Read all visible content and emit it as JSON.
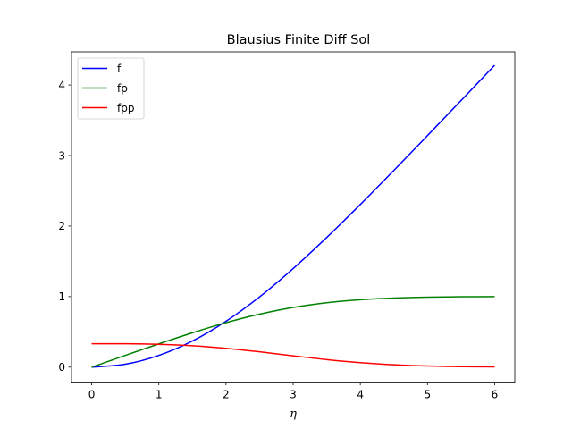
{
  "chart_data": {
    "type": "line",
    "title": "Blausius Finite Diff Sol",
    "xlabel": "η",
    "ylabel": "",
    "xlim": [
      -0.3,
      6.3
    ],
    "ylim": [
      -0.213,
      4.47
    ],
    "xticks": [
      "0",
      "1",
      "2",
      "3",
      "4",
      "5",
      "6"
    ],
    "yticks": [
      "0",
      "1",
      "2",
      "3",
      "4"
    ],
    "grid": false,
    "legend_position": "upper-left",
    "x": [
      0,
      0.5,
      1,
      1.5,
      2,
      2.5,
      3,
      3.5,
      4,
      4.5,
      5,
      5.5,
      6
    ],
    "series": [
      {
        "name": "f",
        "color": "#0000ff",
        "values": [
          0.0,
          0.041,
          0.166,
          0.37,
          0.65,
          0.996,
          1.397,
          1.838,
          2.306,
          2.79,
          3.283,
          3.78,
          4.28
        ]
      },
      {
        "name": "fp",
        "color": "#008000",
        "values": [
          0.0,
          0.166,
          0.33,
          0.487,
          0.63,
          0.751,
          0.846,
          0.913,
          0.956,
          0.98,
          0.992,
          0.998,
          1.0
        ]
      },
      {
        "name": "fpp",
        "color": "#ff0000",
        "values": [
          0.332,
          0.331,
          0.323,
          0.303,
          0.267,
          0.217,
          0.161,
          0.107,
          0.064,
          0.034,
          0.016,
          0.007,
          0.003
        ]
      }
    ]
  }
}
